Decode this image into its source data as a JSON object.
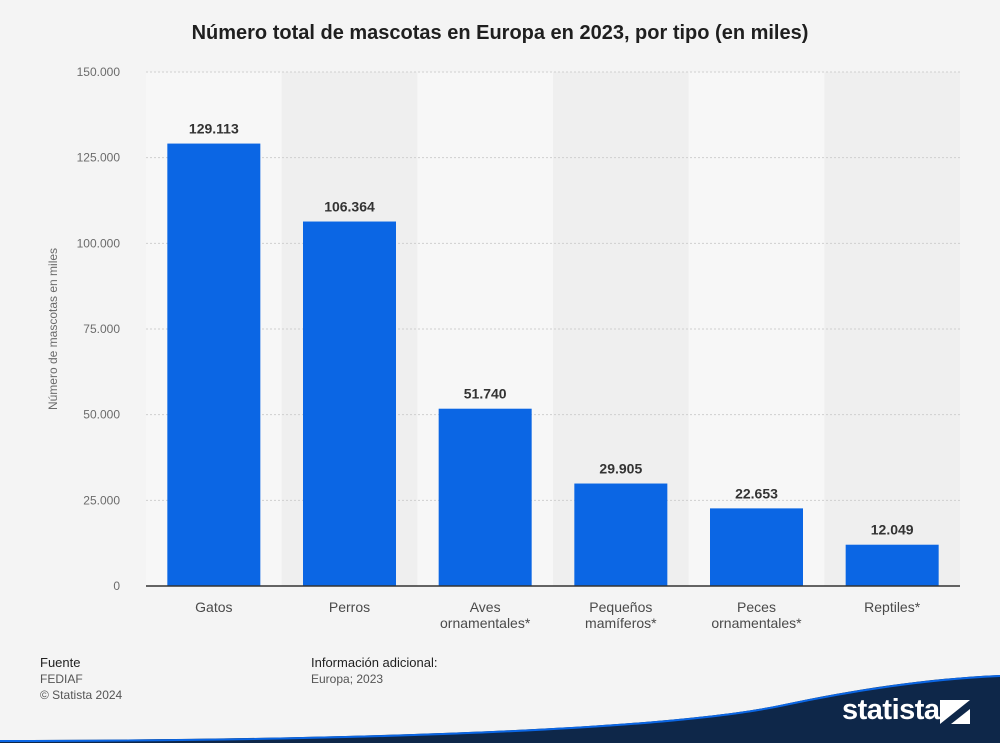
{
  "chart_data": {
    "type": "bar",
    "title": "Número total de mascotas en Europa en 2023, por tipo (en miles)",
    "ylabel": "Número de mascotas en miles",
    "xlabel": "",
    "ylim": [
      0,
      150000
    ],
    "yticks": [
      0,
      25000,
      50000,
      75000,
      100000,
      125000,
      150000
    ],
    "ytick_labels": [
      "0",
      "25.000",
      "50.000",
      "75.000",
      "100.000",
      "125.000",
      "150.000"
    ],
    "categories": [
      [
        "Gatos"
      ],
      [
        "Perros"
      ],
      [
        "Aves",
        "ornamentales*"
      ],
      [
        "Pequeños",
        "mamíferos*"
      ],
      [
        "Peces",
        "ornamentales*"
      ],
      [
        "Reptiles*"
      ]
    ],
    "values": [
      129113,
      106364,
      51740,
      29905,
      22653,
      12049
    ],
    "value_labels": [
      "129.113",
      "106.364",
      "51.740",
      "29.905",
      "22.653",
      "12.049"
    ],
    "grid": true,
    "legend": "none",
    "colors": {
      "bar": "#0b66e4",
      "band_light": "#f7f7f7",
      "band_dark": "#efefef",
      "grid": "#cfcfcf",
      "axis": "#333333"
    }
  },
  "footer": {
    "source_heading": "Fuente",
    "source_name": "FEDIAF",
    "copyright": "© Statista 2024",
    "info_heading": "Información adicional:",
    "info_text": "Europa; 2023"
  },
  "brand": {
    "name": "statista",
    "wave_color": "#0e2749",
    "accent_color": "#0b66e4",
    "icon": "statista-logo-icon"
  }
}
